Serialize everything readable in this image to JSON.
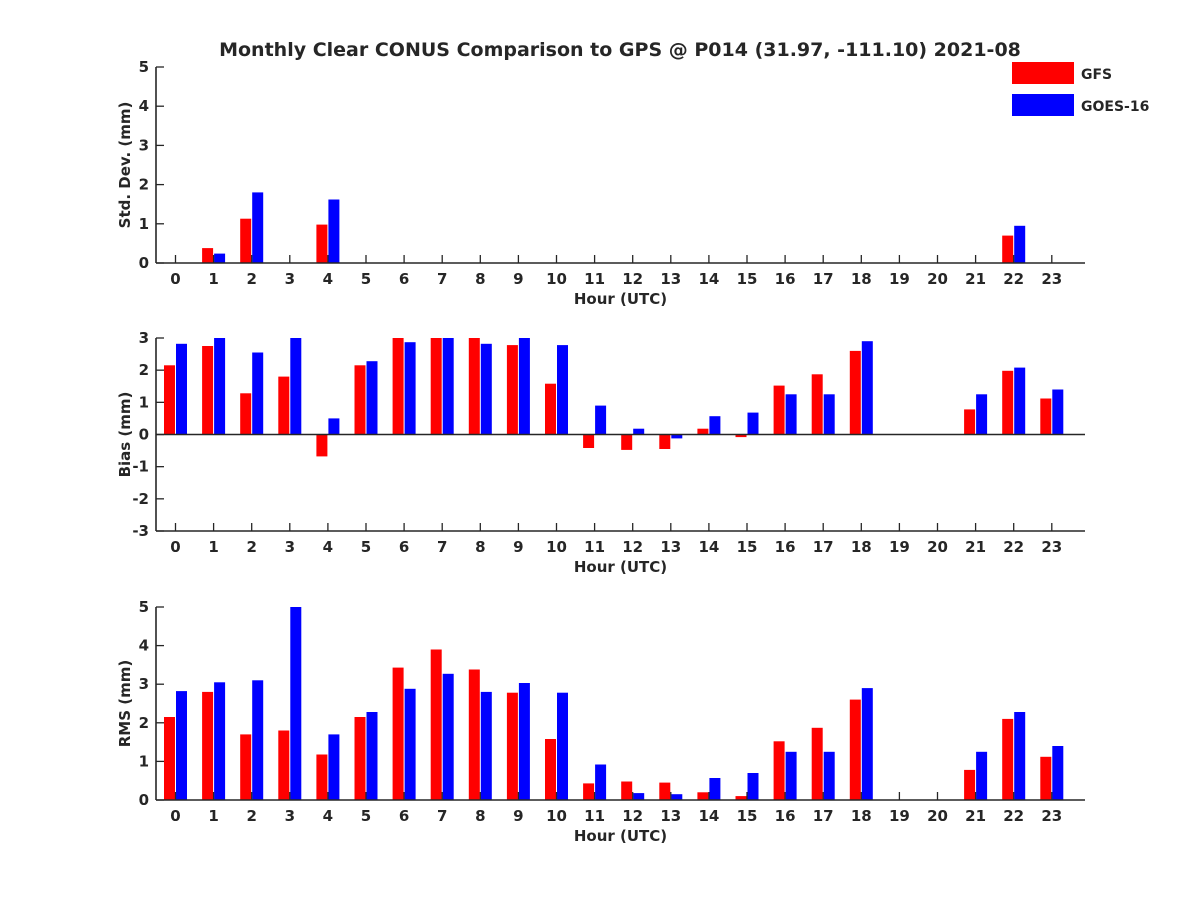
{
  "title": "Monthly Clear CONUS Comparison to GPS @ P014 (31.97, -111.10) 2021-08",
  "legend": {
    "entries": [
      {
        "label": "GFS",
        "color": "#ff0000"
      },
      {
        "label": "GOES-16",
        "color": "#0000ff"
      }
    ],
    "placement": "top-right"
  },
  "chart_data": [
    {
      "type": "bar",
      "ylabel": "Std. Dev. (mm)",
      "xlabel": "Hour (UTC)",
      "ylim": [
        0,
        5
      ],
      "yticks": [
        0,
        1,
        2,
        3,
        4,
        5
      ],
      "categories": [
        "0",
        "1",
        "2",
        "3",
        "4",
        "5",
        "6",
        "7",
        "8",
        "9",
        "10",
        "11",
        "12",
        "13",
        "14",
        "15",
        "16",
        "17",
        "18",
        "19",
        "20",
        "21",
        "22",
        "23"
      ],
      "series": [
        {
          "name": "GFS",
          "color": "#ff0000",
          "values": [
            null,
            0.38,
            1.13,
            null,
            0.98,
            null,
            null,
            null,
            null,
            null,
            null,
            null,
            null,
            null,
            null,
            null,
            null,
            null,
            null,
            null,
            null,
            null,
            0.7,
            null
          ]
        },
        {
          "name": "GOES-16",
          "color": "#0000ff",
          "values": [
            null,
            0.24,
            1.8,
            null,
            1.62,
            null,
            null,
            null,
            null,
            null,
            null,
            null,
            null,
            null,
            null,
            null,
            null,
            null,
            null,
            null,
            null,
            null,
            0.95,
            null
          ]
        }
      ]
    },
    {
      "type": "bar",
      "ylabel": "Bias (mm)",
      "xlabel": "Hour (UTC)",
      "ylim": [
        -3,
        3
      ],
      "yticks": [
        -3,
        -2,
        -1,
        0,
        1,
        2,
        3
      ],
      "categories": [
        "0",
        "1",
        "2",
        "3",
        "4",
        "5",
        "6",
        "7",
        "8",
        "9",
        "10",
        "11",
        "12",
        "13",
        "14",
        "15",
        "16",
        "17",
        "18",
        "19",
        "20",
        "21",
        "22",
        "23"
      ],
      "series": [
        {
          "name": "GFS",
          "color": "#ff0000",
          "values": [
            2.15,
            2.75,
            1.28,
            1.8,
            -0.68,
            2.15,
            3.0,
            3.0,
            3.0,
            2.78,
            1.58,
            -0.42,
            -0.48,
            -0.45,
            0.18,
            -0.08,
            1.52,
            1.87,
            2.6,
            null,
            null,
            0.78,
            1.98,
            1.12
          ]
        },
        {
          "name": "GOES-16",
          "color": "#0000ff",
          "values": [
            2.82,
            3.0,
            2.55,
            3.0,
            0.5,
            2.28,
            2.87,
            3.0,
            2.82,
            3.0,
            2.78,
            0.9,
            0.18,
            -0.12,
            0.57,
            0.68,
            1.25,
            1.25,
            2.9,
            null,
            null,
            1.25,
            2.08,
            1.4
          ]
        }
      ]
    },
    {
      "type": "bar",
      "ylabel": "RMS (mm)",
      "xlabel": "Hour (UTC)",
      "ylim": [
        0,
        5
      ],
      "yticks": [
        0,
        1,
        2,
        3,
        4,
        5
      ],
      "categories": [
        "0",
        "1",
        "2",
        "3",
        "4",
        "5",
        "6",
        "7",
        "8",
        "9",
        "10",
        "11",
        "12",
        "13",
        "14",
        "15",
        "16",
        "17",
        "18",
        "19",
        "20",
        "21",
        "22",
        "23"
      ],
      "series": [
        {
          "name": "GFS",
          "color": "#ff0000",
          "values": [
            2.15,
            2.8,
            1.7,
            1.8,
            1.18,
            2.15,
            3.43,
            3.9,
            3.38,
            2.78,
            1.58,
            0.43,
            0.48,
            0.45,
            0.2,
            0.1,
            1.52,
            1.87,
            2.6,
            null,
            null,
            0.78,
            2.1,
            1.12
          ]
        },
        {
          "name": "GOES-16",
          "color": "#0000ff",
          "values": [
            2.82,
            3.05,
            3.1,
            5.0,
            1.7,
            2.28,
            2.88,
            3.27,
            2.8,
            3.03,
            2.78,
            0.92,
            0.18,
            0.15,
            0.57,
            0.7,
            1.25,
            1.25,
            2.9,
            null,
            null,
            1.25,
            2.28,
            1.4
          ]
        }
      ]
    }
  ]
}
